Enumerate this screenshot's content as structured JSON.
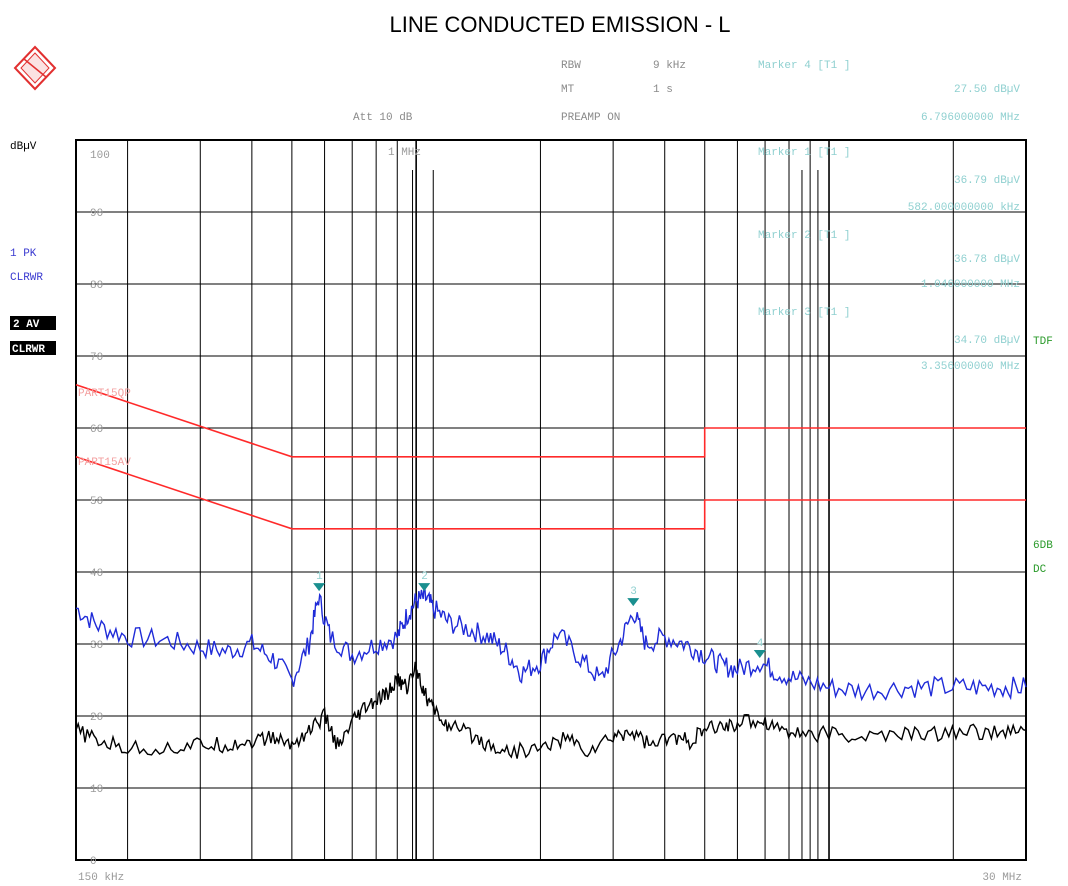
{
  "title": "LINE CONDUCTED EMISSION - L",
  "settings": {
    "rbw": {
      "label": "RBW",
      "value": "9 kHz"
    },
    "mt": {
      "label": "MT",
      "value": "1 s"
    },
    "att": "Att 10 dB",
    "preamp": "PREAMP ON"
  },
  "markers": [
    {
      "label": "Marker 4 [T1 ]",
      "level": "27.50 dBµV",
      "freq": "6.796000000 MHz",
      "n": "4",
      "x_mhz": 6.796,
      "y_dbuv": 27.5
    },
    {
      "label": "Marker 1 [T1 ]",
      "level": "36.79 dBµV",
      "freq": "582.000000000 kHz",
      "n": "1",
      "x_mhz": 0.582,
      "y_dbuv": 36.79
    },
    {
      "label": "Marker 2 [T1 ]",
      "level": "36.78 dBµV",
      "freq": "1.046000000 MHz",
      "n": "2",
      "x_mhz": 1.046,
      "y_dbuv": 36.78
    },
    {
      "label": "Marker 3 [T1 ]",
      "level": "34.70 dBµV",
      "freq": "3.356000000 MHz",
      "n": "3",
      "x_mhz": 3.356,
      "y_dbuv": 34.7
    }
  ],
  "left_labels": {
    "unit": "dBµV",
    "trace1": "1 PK",
    "trace1_mode": "CLRWR",
    "trace2": "2 AV",
    "trace2_mode": "CLRWR"
  },
  "right_labels": {
    "tdf": "TDF",
    "db": "6DB",
    "dc": "DC"
  },
  "top_freq_label": "1 MHz",
  "limit_labels": {
    "qp": "PART15QP",
    "av": "PART15AV"
  },
  "chart_data": {
    "type": "line",
    "xscale": "log",
    "xlim_mhz": [
      0.15,
      30
    ],
    "ylim": [
      0,
      100
    ],
    "ylabel": "dBµV",
    "x_start_label": "150 kHz",
    "x_stop_label": "30 MHz",
    "y_ticks": [
      "0",
      "10",
      "20",
      "30",
      "40",
      "50",
      "60",
      "70",
      "80",
      "90",
      "100"
    ],
    "series": [
      {
        "name": "1 PK",
        "color": "#1f2bd8",
        "points": [
          [
            0.15,
            35
          ],
          [
            0.17,
            32.5
          ],
          [
            0.2,
            31
          ],
          [
            0.25,
            30.5
          ],
          [
            0.3,
            29.5
          ],
          [
            0.35,
            29
          ],
          [
            0.4,
            30
          ],
          [
            0.45,
            28
          ],
          [
            0.5,
            25
          ],
          [
            0.55,
            30
          ],
          [
            0.58,
            36.5
          ],
          [
            0.62,
            31
          ],
          [
            0.7,
            28.5
          ],
          [
            0.8,
            30
          ],
          [
            0.9,
            31
          ],
          [
            0.95,
            34
          ],
          [
            1.0,
            36
          ],
          [
            1.05,
            36.5
          ],
          [
            1.1,
            35
          ],
          [
            1.2,
            33
          ],
          [
            1.35,
            32
          ],
          [
            1.5,
            31
          ],
          [
            1.65,
            29
          ],
          [
            1.8,
            26
          ],
          [
            2.0,
            27.5
          ],
          [
            2.2,
            31.5
          ],
          [
            2.5,
            28
          ],
          [
            2.8,
            25
          ],
          [
            3.1,
            30
          ],
          [
            3.36,
            34.5
          ],
          [
            3.6,
            30
          ],
          [
            4.0,
            31
          ],
          [
            4.5,
            30
          ],
          [
            5.0,
            28.5
          ],
          [
            5.5,
            27
          ],
          [
            6.0,
            26.5
          ],
          [
            6.8,
            27.5
          ],
          [
            7.5,
            26
          ],
          [
            8.5,
            25
          ],
          [
            10,
            24
          ],
          [
            12,
            23.5
          ],
          [
            15,
            24
          ],
          [
            18,
            24
          ],
          [
            22,
            24
          ],
          [
            26,
            24
          ],
          [
            30,
            24
          ]
        ]
      },
      {
        "name": "2 AV",
        "color": "#000000",
        "points": [
          [
            0.15,
            18
          ],
          [
            0.17,
            16.5
          ],
          [
            0.2,
            15.5
          ],
          [
            0.25,
            15.5
          ],
          [
            0.3,
            16
          ],
          [
            0.35,
            16
          ],
          [
            0.4,
            16.5
          ],
          [
            0.45,
            17
          ],
          [
            0.5,
            16
          ],
          [
            0.55,
            18
          ],
          [
            0.6,
            20
          ],
          [
            0.65,
            15.5
          ],
          [
            0.7,
            19
          ],
          [
            0.75,
            21
          ],
          [
            0.8,
            22
          ],
          [
            0.85,
            23
          ],
          [
            0.9,
            25
          ],
          [
            0.95,
            24
          ],
          [
            1.0,
            27
          ],
          [
            1.05,
            23
          ],
          [
            1.1,
            21
          ],
          [
            1.2,
            18.5
          ],
          [
            1.35,
            17.5
          ],
          [
            1.5,
            16
          ],
          [
            1.7,
            15
          ],
          [
            2.0,
            15.5
          ],
          [
            2.3,
            17
          ],
          [
            2.6,
            15
          ],
          [
            3.0,
            17
          ],
          [
            3.3,
            18
          ],
          [
            3.7,
            16
          ],
          [
            4.2,
            17
          ],
          [
            4.6,
            16.5
          ],
          [
            5.0,
            18
          ],
          [
            5.5,
            18.5
          ],
          [
            6.0,
            19
          ],
          [
            6.8,
            19.5
          ],
          [
            7.5,
            18.5
          ],
          [
            8.5,
            17.5
          ],
          [
            10,
            17.5
          ],
          [
            12,
            17
          ],
          [
            15,
            17.5
          ],
          [
            18,
            17.5
          ],
          [
            22,
            18
          ],
          [
            26,
            17.5
          ],
          [
            30,
            18
          ]
        ]
      },
      {
        "name": "PART15QP",
        "color": "#ff2a2a",
        "points": [
          [
            0.15,
            66
          ],
          [
            0.5,
            56
          ],
          [
            5,
            56
          ],
          [
            5,
            60
          ],
          [
            30,
            60
          ]
        ]
      },
      {
        "name": "PART15AV",
        "color": "#ff2a2a",
        "points": [
          [
            0.15,
            56
          ],
          [
            0.5,
            46
          ],
          [
            5,
            46
          ],
          [
            5,
            50
          ],
          [
            30,
            50
          ]
        ]
      }
    ]
  }
}
